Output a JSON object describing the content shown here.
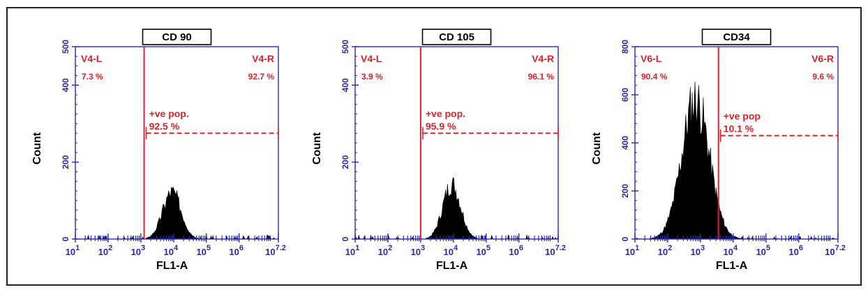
{
  "chart_data": [
    {
      "type": "histogram",
      "title": "CD 90",
      "xlabel": "FL1-A",
      "ylabel": "Count",
      "x_scale": "log10",
      "xlim": [
        1,
        7.2
      ],
      "ylim": [
        0,
        500
      ],
      "x_ticks": [
        {
          "value": 1,
          "base": "10",
          "exp": "1"
        },
        {
          "value": 2,
          "base": "10",
          "exp": "2"
        },
        {
          "value": 3,
          "base": "10",
          "exp": "3"
        },
        {
          "value": 4,
          "base": "10",
          "exp": "4"
        },
        {
          "value": 5,
          "base": "10",
          "exp": "5"
        },
        {
          "value": 6,
          "base": "10",
          "exp": "6"
        },
        {
          "value": 7.2,
          "base": "10",
          "exp": "7.2"
        }
      ],
      "y_ticks": [
        {
          "value": 0,
          "label": "0"
        },
        {
          "value": 200,
          "label": "200"
        },
        {
          "value": 400,
          "label": "400"
        },
        {
          "value": 500,
          "label": "500"
        }
      ],
      "gate_x": 3.1,
      "left_region": {
        "name": "V4-L",
        "percent": "7.3 %"
      },
      "right_region": {
        "name": "V4-R",
        "percent": "92.7 %"
      },
      "positive_population": {
        "label": "+ve pop.",
        "percent": "92.5 %",
        "level": 275
      },
      "histogram": {
        "center": 3.95,
        "sigma": 0.28,
        "peak": 125,
        "seed": 3
      }
    },
    {
      "type": "histogram",
      "title": "CD 105",
      "xlabel": "FL1-A",
      "ylabel": "Count",
      "x_scale": "log10",
      "xlim": [
        1,
        7.2
      ],
      "ylim": [
        0,
        500
      ],
      "x_ticks": [
        {
          "value": 1,
          "base": "10",
          "exp": "1"
        },
        {
          "value": 2,
          "base": "10",
          "exp": "2"
        },
        {
          "value": 3,
          "base": "10",
          "exp": "3"
        },
        {
          "value": 4,
          "base": "10",
          "exp": "4"
        },
        {
          "value": 5,
          "base": "10",
          "exp": "5"
        },
        {
          "value": 6,
          "base": "10",
          "exp": "6"
        },
        {
          "value": 7.2,
          "base": "10",
          "exp": "7.2"
        }
      ],
      "y_ticks": [
        {
          "value": 0,
          "label": "0"
        },
        {
          "value": 200,
          "label": "200"
        },
        {
          "value": 400,
          "label": "400"
        },
        {
          "value": 500,
          "label": "500"
        }
      ],
      "gate_x": 3.0,
      "left_region": {
        "name": "V4-L",
        "percent": "3.9 %"
      },
      "right_region": {
        "name": "V4-R",
        "percent": "96.1 %"
      },
      "positive_population": {
        "label": "+ve pop.",
        "percent": "95.9 %",
        "level": 275
      },
      "histogram": {
        "center": 3.95,
        "sigma": 0.27,
        "peak": 145,
        "seed": 7
      }
    },
    {
      "type": "histogram",
      "title": "CD34",
      "xlabel": "FL1-A",
      "ylabel": "Count",
      "x_scale": "log10",
      "xlim": [
        1,
        7.2
      ],
      "ylim": [
        0,
        800
      ],
      "x_ticks": [
        {
          "value": 1,
          "base": "10",
          "exp": "1"
        },
        {
          "value": 2,
          "base": "10",
          "exp": "2"
        },
        {
          "value": 3,
          "base": "10",
          "exp": "3"
        },
        {
          "value": 4,
          "base": "10",
          "exp": "4"
        },
        {
          "value": 5,
          "base": "10",
          "exp": "5"
        },
        {
          "value": 6,
          "base": "10",
          "exp": "6"
        },
        {
          "value": 7.2,
          "base": "10",
          "exp": "7.2"
        }
      ],
      "y_ticks": [
        {
          "value": 0,
          "label": "0"
        },
        {
          "value": 200,
          "label": "200"
        },
        {
          "value": 400,
          "label": "400"
        },
        {
          "value": 600,
          "label": "600"
        },
        {
          "value": 800,
          "label": "800"
        }
      ],
      "gate_x": 3.55,
      "left_region": {
        "name": "V6-L",
        "percent": "90.4 %"
      },
      "right_region": {
        "name": "V6-R",
        "percent": "9.6 %"
      },
      "positive_population": {
        "label": "+ve pop",
        "percent": "10.1 %",
        "level": 430
      },
      "histogram": {
        "center": 2.85,
        "sigma": 0.42,
        "peak": 590,
        "seed": 11
      }
    }
  ],
  "colors": {
    "axis": "#2a2aa8",
    "gate": "#d8242c",
    "fill": "#000000",
    "title_box_border": "#000000"
  }
}
